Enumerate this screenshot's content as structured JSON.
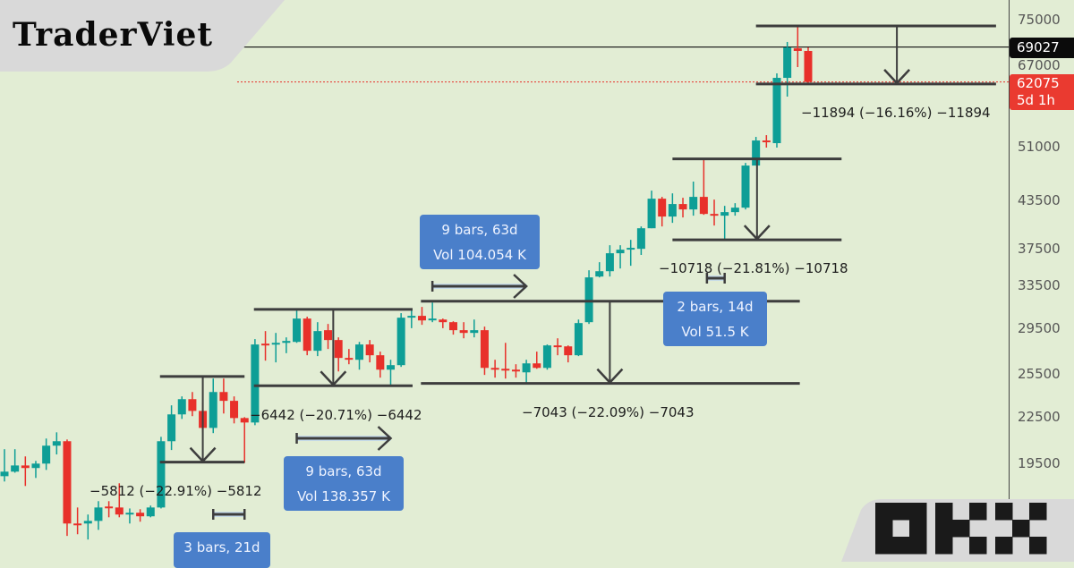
{
  "watermark": {
    "left_logo": "TraderViet",
    "right_logo": "OKX"
  },
  "colors": {
    "background": "#e2edd4",
    "up": "#0e9e96",
    "down": "#e8302a",
    "label_box": "#4a7fca",
    "logo_panel": "#d9d9d9"
  },
  "price_axis": {
    "ticks": [
      "75000",
      "67000",
      "51000",
      "43500",
      "37500",
      "33500",
      "29500",
      "25500",
      "22500",
      "19500"
    ],
    "last_close_label": "69027",
    "current_price_label": "62075",
    "countdown_label": "5d 1h"
  },
  "annotations": {
    "m1": "−11894 (−16.16%) −11894",
    "m2": "−10718 (−21.81%) −10718",
    "m3": "−7043 (−22.09%) −7043",
    "m4": "−6442 (−20.71%) −6442",
    "m5": "−5812 (−22.91%) −5812",
    "r1_bars": "9 bars, 63d",
    "r1_vol": "Vol 104.054 K",
    "r2_bars": "9 bars, 63d",
    "r2_vol": "Vol 138.357 K",
    "r3_bars": "2 bars, 14d",
    "r3_vol": "Vol 51.5 K",
    "r4_bars": "3 bars, 21d"
  },
  "chart_data": {
    "type": "candlestick",
    "y_scale": "log",
    "ylim": [
      14470,
      79700
    ],
    "grid": false,
    "interval": "weekly",
    "horizontal_lines": [
      {
        "price": 69027,
        "style": "solid"
      },
      {
        "price": 62075,
        "style": "dotted",
        "color": "#e8302a"
      }
    ],
    "candles_ohlc": [
      [
        18740,
        20340,
        18440,
        19000
      ],
      [
        19000,
        20340,
        18940,
        19360
      ],
      [
        19360,
        19900,
        18190,
        19210
      ],
      [
        19210,
        19630,
        18640,
        19470
      ],
      [
        19470,
        21010,
        19100,
        20560
      ],
      [
        20560,
        21410,
        20020,
        20840
      ],
      [
        20840,
        20950,
        15630,
        16230
      ],
      [
        16230,
        17040,
        15710,
        16190
      ],
      [
        16230,
        16680,
        15460,
        16360
      ],
      [
        16360,
        17370,
        15920,
        17040
      ],
      [
        17090,
        17370,
        16540,
        17040
      ],
      [
        17040,
        18340,
        16540,
        16680
      ],
      [
        16680,
        16990,
        16230,
        16770
      ],
      [
        16770,
        16950,
        16320,
        16590
      ],
      [
        16590,
        17140,
        16540,
        17040
      ],
      [
        17040,
        21120,
        16990,
        20840
      ],
      [
        20840,
        23240,
        20290,
        22610
      ],
      [
        22610,
        23880,
        22300,
        23680
      ],
      [
        23680,
        24200,
        22490,
        22850
      ],
      [
        22850,
        23430,
        21410,
        21700
      ],
      [
        21700,
        25210,
        21360,
        24200
      ],
      [
        24200,
        25210,
        22670,
        23560
      ],
      [
        23560,
        23880,
        22000,
        22360
      ],
      [
        22360,
        22420,
        19520,
        22060
      ],
      [
        22060,
        28420,
        21880,
        27960
      ],
      [
        28030,
        29120,
        26620,
        27960
      ],
      [
        27960,
        28960,
        26480,
        28100
      ],
      [
        28100,
        28570,
        27230,
        28260
      ],
      [
        28180,
        31000,
        28100,
        30250
      ],
      [
        30250,
        30420,
        27060,
        27430
      ],
      [
        27430,
        29920,
        26990,
        29120
      ],
      [
        29200,
        29760,
        27580,
        28340
      ],
      [
        28340,
        28570,
        25760,
        26840
      ],
      [
        26840,
        27580,
        26330,
        26770
      ],
      [
        26690,
        28180,
        25900,
        27960
      ],
      [
        27960,
        28340,
        26480,
        27060
      ],
      [
        27060,
        27360,
        25280,
        25900
      ],
      [
        25900,
        26690,
        24600,
        26260
      ],
      [
        26260,
        30750,
        26120,
        30330
      ],
      [
        30410,
        31100,
        29380,
        30500
      ],
      [
        30500,
        31340,
        29680,
        30080
      ],
      [
        30160,
        31760,
        29920,
        30250
      ],
      [
        30160,
        30250,
        29380,
        29920
      ],
      [
        29920,
        30000,
        28810,
        29200
      ],
      [
        29200,
        29920,
        28490,
        28960
      ],
      [
        28960,
        30160,
        28570,
        29200
      ],
      [
        29200,
        29520,
        25490,
        26040
      ],
      [
        26040,
        26690,
        25280,
        25970
      ],
      [
        25970,
        28100,
        25210,
        25900
      ],
      [
        25900,
        26330,
        25280,
        25760
      ],
      [
        25690,
        26690,
        24870,
        26400
      ],
      [
        26400,
        27360,
        25970,
        26040
      ],
      [
        26040,
        27960,
        25900,
        27880
      ],
      [
        27880,
        28490,
        27060,
        27800
      ],
      [
        27800,
        27880,
        26480,
        27060
      ],
      [
        27060,
        30160,
        26990,
        29840
      ],
      [
        29920,
        35030,
        29760,
        34280
      ],
      [
        34370,
        35900,
        34280,
        34930
      ],
      [
        34930,
        37800,
        34370,
        36890
      ],
      [
        36890,
        37800,
        35220,
        37290
      ],
      [
        37390,
        38420,
        35510,
        37500
      ],
      [
        37390,
        40020,
        36700,
        39800
      ],
      [
        39800,
        44620,
        39800,
        43540
      ],
      [
        43540,
        43780,
        40020,
        41240
      ],
      [
        41240,
        44250,
        40460,
        42840
      ],
      [
        42840,
        43660,
        41130,
        42140
      ],
      [
        42140,
        45860,
        41350,
        43780
      ],
      [
        43780,
        49090,
        41460,
        41570
      ],
      [
        41570,
        43420,
        40130,
        41460
      ],
      [
        41350,
        42600,
        38420,
        41800
      ],
      [
        41800,
        42950,
        41350,
        42370
      ],
      [
        42370,
        48540,
        42140,
        48150
      ],
      [
        48150,
        52530,
        48150,
        51960
      ],
      [
        51960,
        52810,
        50850,
        51820
      ],
      [
        51540,
        63710,
        50850,
        62850
      ],
      [
        62850,
        70080,
        59370,
        68940
      ],
      [
        68760,
        73590,
        64940,
        68200
      ],
      [
        68200,
        68940,
        61510,
        62075
      ]
    ],
    "price_range_measures": [
      {
        "from_bar": 72,
        "to_bar": 95,
        "high": 73590,
        "low": 61696,
        "change": -11894,
        "percent": -16.16,
        "arrow_bar": 85.5
      },
      {
        "from_bar": 64,
        "to_bar": 80.2,
        "high": 49140,
        "low": 38422,
        "change": -10718,
        "percent": -21.81,
        "arrow_bar": 72.1
      },
      {
        "from_bar": 39.9,
        "to_bar": 76.2,
        "high": 31883,
        "low": 24840,
        "change": -7043,
        "percent": -22.09,
        "arrow_bar": 58
      },
      {
        "from_bar": 23.9,
        "to_bar": 39.1,
        "high": 31106,
        "low": 24664,
        "change": -6442,
        "percent": -20.71,
        "arrow_bar": 31.5
      },
      {
        "from_bar": 14.9,
        "to_bar": 23,
        "high": 25369,
        "low": 19557,
        "change": -5812,
        "percent": -22.91,
        "arrow_bar": 19
      }
    ],
    "date_range_measures": [
      {
        "from_bar": 41,
        "to_bar": 50,
        "bars": 9,
        "days": 63,
        "volume": "104.054K"
      },
      {
        "from_bar": 28,
        "to_bar": 37,
        "bars": 9,
        "days": 63,
        "volume": "138.357K"
      },
      {
        "from_bar": 67.3,
        "to_bar": 69,
        "bars": 2,
        "days": 14,
        "volume": "51.5K"
      },
      {
        "from_bar": 20,
        "to_bar": 23,
        "bars": 3,
        "days": 21
      }
    ]
  }
}
